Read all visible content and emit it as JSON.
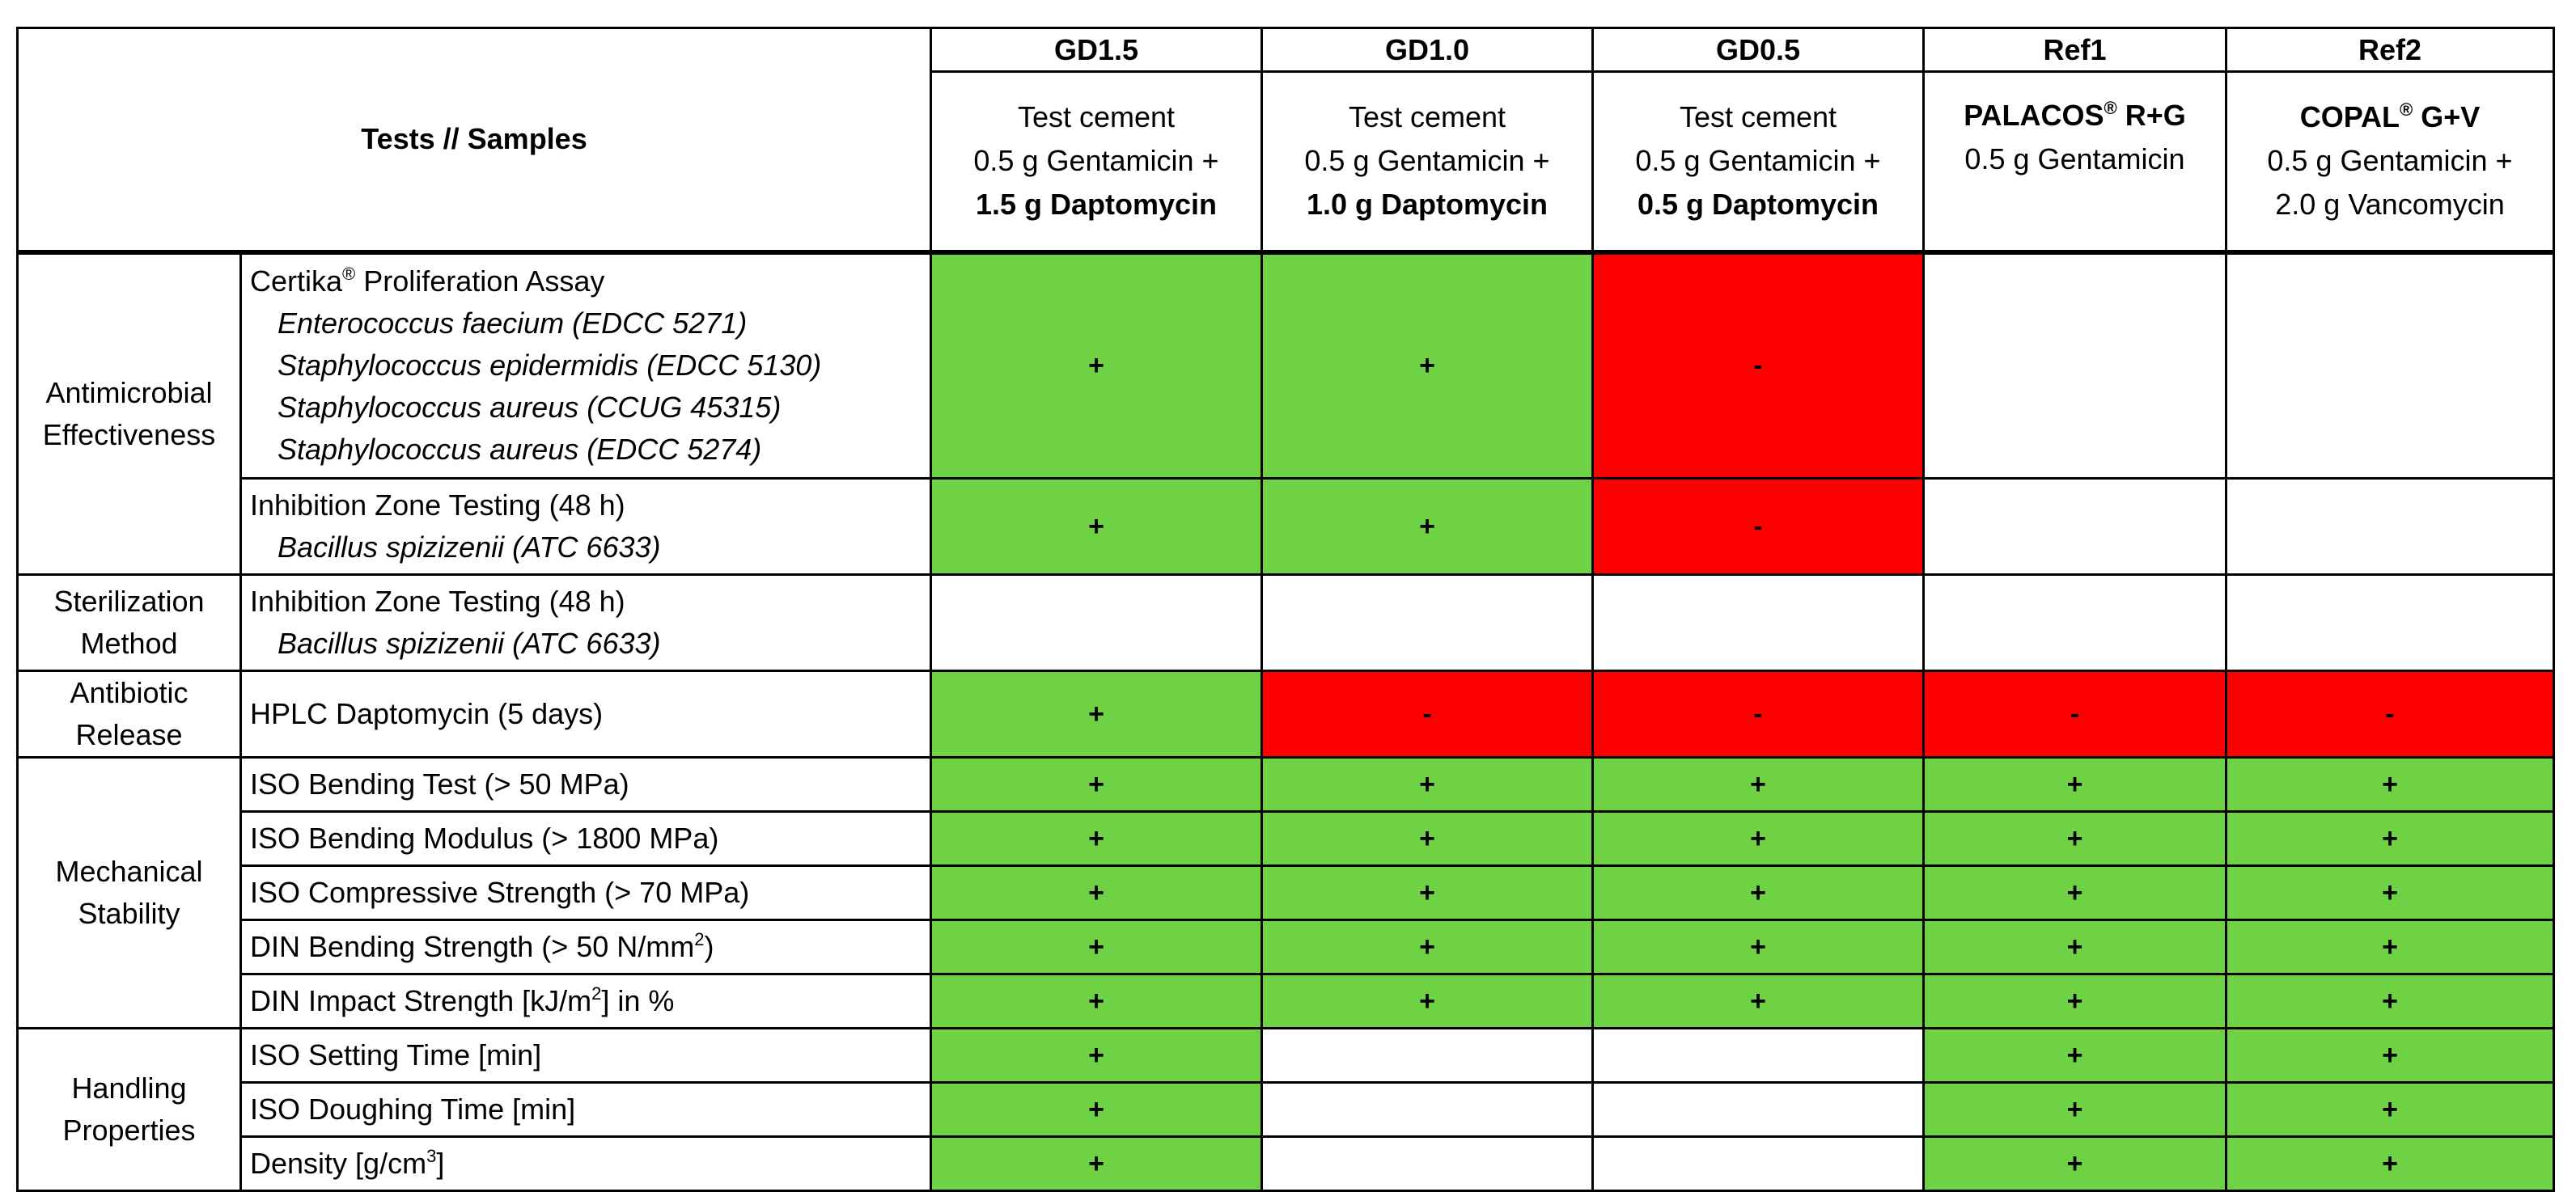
{
  "header": {
    "corner_label": "Tests // Samples",
    "samples": [
      {
        "id": "GD1.5",
        "line1": "Test cement",
        "line2": "0.5 g Gentamicin +",
        "line3": "1.5 g Daptomycin"
      },
      {
        "id": "GD1.0",
        "line1": "Test cement",
        "line2": "0.5 g Gentamicin +",
        "line3": "1.0 g Daptomycin"
      },
      {
        "id": "GD0.5",
        "line1": "Test cement",
        "line2": "0.5 g Gentamicin +",
        "line3": "0.5 g Daptomycin"
      },
      {
        "id": "Ref1",
        "brand": "PALACOS",
        "reg": "®",
        "brand_suffix": " R+G",
        "line2": "0.5 g Gentamicin"
      },
      {
        "id": "Ref2",
        "brand": "COPAL",
        "reg": "®",
        "brand_suffix": " G+V",
        "line2": "0.5 g Gentamicin +",
        "line3": "2.0 g Vancomycin"
      }
    ]
  },
  "categories": {
    "antimicrobial": {
      "l1": "Antimicrobial",
      "l2": "Effectiveness"
    },
    "sterilization": {
      "l1": "Sterilization",
      "l2": "Method"
    },
    "release": {
      "l1": "Antibiotic",
      "l2": "Release"
    },
    "mechanical": {
      "l1": "Mechanical",
      "l2": "Stability"
    },
    "handling": {
      "l1": "Handling",
      "l2": "Properties"
    }
  },
  "tests": {
    "certika": {
      "title": "Certika",
      "reg": "®",
      "title_suffix": " Proliferation Assay",
      "organisms": [
        "Enterococcus faecium (EDCC 5271)",
        "Staphylococcus epidermidis (EDCC 5130)",
        "Staphylococcus aureus (CCUG 45315)",
        "Staphylococcus aureus (EDCC 5274)"
      ],
      "results": [
        "+",
        "+",
        "-",
        "",
        ""
      ]
    },
    "inhibition_antimicrobial": {
      "title": "Inhibition Zone Testing (48 h)",
      "organism": "Bacillus spizizenii (ATC 6633)",
      "results": [
        "+",
        "+",
        "-",
        "",
        ""
      ]
    },
    "inhibition_sterilization": {
      "title": "Inhibition Zone Testing (48 h)",
      "organism": "Bacillus spizizenii (ATC 6633)",
      "results": [
        "",
        "",
        "",
        "",
        ""
      ]
    },
    "hplc": {
      "title": "HPLC Daptomycin (5 days)",
      "results": [
        "+",
        "-",
        "-",
        "-",
        "-"
      ]
    },
    "iso_bending_test": {
      "title": "ISO Bending Test (> 50 MPa)",
      "results": [
        "+",
        "+",
        "+",
        "+",
        "+"
      ]
    },
    "iso_bending_modulus": {
      "title": "ISO Bending Modulus (> 1800 MPa)",
      "results": [
        "+",
        "+",
        "+",
        "+",
        "+"
      ]
    },
    "iso_compressive": {
      "title": "ISO Compressive Strength (> 70 MPa)",
      "results": [
        "+",
        "+",
        "+",
        "+",
        "+"
      ]
    },
    "din_bending": {
      "title": "DIN Bending Strength (> 50 N/mm",
      "sup": "2",
      "title_suffix": ")",
      "results": [
        "+",
        "+",
        "+",
        "+",
        "+"
      ]
    },
    "din_impact": {
      "title": "DIN Impact Strength [kJ/m",
      "sup": "2",
      "title_suffix": "] in %",
      "results": [
        "+",
        "+",
        "+",
        "+",
        "+"
      ]
    },
    "iso_setting": {
      "title": "ISO Setting Time [min]",
      "results": [
        "+",
        "",
        "",
        "+",
        "+"
      ]
    },
    "iso_doughing": {
      "title": "ISO Doughing Time [min]",
      "results": [
        "+",
        "",
        "",
        "+",
        "+"
      ]
    },
    "density": {
      "title": "Density [g/cm",
      "sup": "3",
      "title_suffix": "]",
      "results": [
        "+",
        "",
        "",
        "+",
        "+"
      ]
    }
  },
  "colors": {
    "pass": "#6fd244",
    "fail": "#ff0000",
    "empty": "#ffffff"
  }
}
